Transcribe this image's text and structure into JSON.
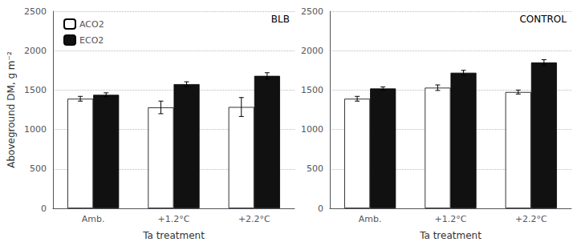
{
  "chart_data": [
    {
      "type": "bar",
      "annotation": "BLB",
      "xlabel": "Ta treatment",
      "ylabel": "Aboveground DM, g m⁻²",
      "categories": [
        "Amb.",
        "+1.2°C",
        "+2.2°C"
      ],
      "series": [
        {
          "name": "ACO2",
          "color": "#ffffff",
          "values": [
            1390,
            1280,
            1285
          ],
          "errors": [
            30,
            80,
            120
          ]
        },
        {
          "name": "ECO2",
          "color": "#111111",
          "values": [
            1440,
            1575,
            1680
          ],
          "errors": [
            25,
            30,
            40
          ]
        }
      ],
      "ylim": [
        0,
        2500
      ],
      "yticks": [
        0,
        500,
        1000,
        1500,
        2000,
        2500
      ],
      "grid": true,
      "legend": "upper left"
    },
    {
      "type": "bar",
      "annotation": "CONTROL",
      "xlabel": "Ta treatment",
      "categories": [
        "Amb.",
        "+1.2°C",
        "+2.2°C"
      ],
      "series": [
        {
          "name": "ACO2",
          "color": "#ffffff",
          "values": [
            1390,
            1530,
            1475
          ],
          "errors": [
            30,
            35,
            25
          ]
        },
        {
          "name": "ECO2",
          "color": "#111111",
          "values": [
            1520,
            1720,
            1850
          ],
          "errors": [
            20,
            30,
            35
          ]
        }
      ],
      "ylim": [
        0,
        2500
      ],
      "yticks": [
        0,
        500,
        1000,
        1500,
        2000,
        2500
      ],
      "grid": true
    }
  ]
}
